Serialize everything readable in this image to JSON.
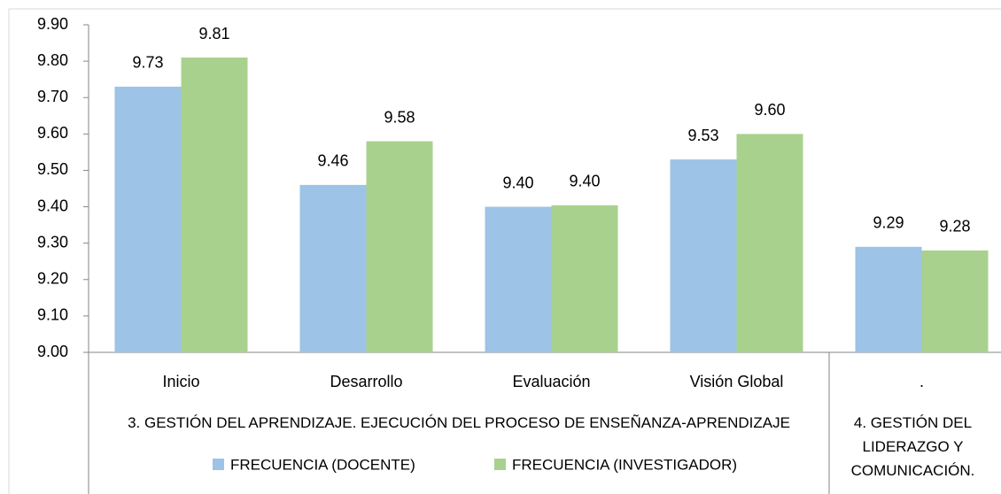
{
  "chart_data": {
    "type": "bar",
    "category_groups": [
      {
        "label": "3. GESTIÓN DEL APRENDIZAJE. EJECUCIÓN DEL PROCESO DE ENSEÑANZA-APRENDIZAJE",
        "categories": [
          "Inicio",
          "Desarrollo",
          "Evaluación",
          "Visión Global"
        ]
      },
      {
        "label": "4. GESTIÓN DEL LIDERAZGO Y COMUNICACIÓN.",
        "categories": [
          "."
        ]
      }
    ],
    "series": [
      {
        "name": "FRECUENCIA (DOCENTE)",
        "color": "#9dc3e6",
        "values": [
          9.73,
          9.46,
          9.4,
          9.53,
          9.29
        ],
        "value_labels": [
          "9.73",
          "9.46",
          "9.40",
          "9.53",
          "9.29"
        ]
      },
      {
        "name": "FRECUENCIA (INVESTIGADOR)",
        "color": "#a9d18e",
        "values": [
          9.81,
          9.58,
          9.404,
          9.6,
          9.28
        ],
        "value_labels": [
          "9.81",
          "9.58",
          "9.40",
          "9.60",
          "9.28"
        ]
      }
    ],
    "ylim": [
      9.0,
      9.9
    ],
    "yticks": [
      {
        "value": 9.0,
        "label": "9.00"
      },
      {
        "value": 9.1,
        "label": "9.10"
      },
      {
        "value": 9.2,
        "label": "9.20"
      },
      {
        "value": 9.3,
        "label": "9.30"
      },
      {
        "value": 9.4,
        "label": "9.40"
      },
      {
        "value": 9.5,
        "label": "9.50"
      },
      {
        "value": 9.6,
        "label": "9.60"
      },
      {
        "value": 9.7,
        "label": "9.70"
      },
      {
        "value": 9.8,
        "label": "9.80"
      },
      {
        "value": 9.9,
        "label": "9.90"
      }
    ],
    "grid": false,
    "legend": "bottom"
  }
}
